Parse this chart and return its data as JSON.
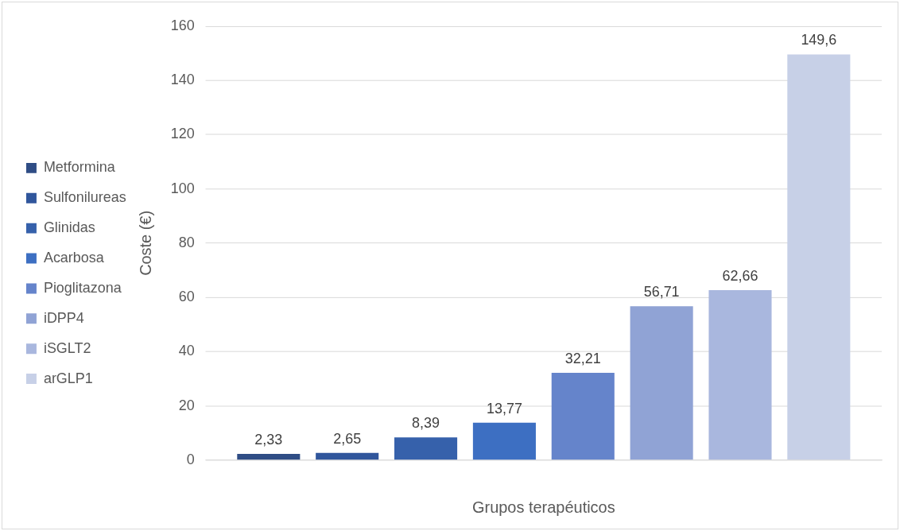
{
  "chart_data": {
    "type": "bar",
    "xlabel": "Grupos terapéuticos",
    "ylabel": "Coste (€)",
    "categories": [
      null
    ],
    "series": [
      {
        "name": "Metformina",
        "color": "#2f4d85",
        "values": [
          2.33
        ],
        "value_labels": [
          "2,33"
        ]
      },
      {
        "name": "Sulfonilureas",
        "color": "#30569c",
        "values": [
          2.65
        ],
        "value_labels": [
          "2,65"
        ]
      },
      {
        "name": "Glinidas",
        "color": "#3661ab",
        "values": [
          8.39
        ],
        "value_labels": [
          "8,39"
        ]
      },
      {
        "name": "Acarbosa",
        "color": "#3d6fc2",
        "values": [
          13.77
        ],
        "value_labels": [
          "13,77"
        ]
      },
      {
        "name": "Pioglitazona",
        "color": "#6584cb",
        "values": [
          32.21
        ],
        "value_labels": [
          "32,21"
        ]
      },
      {
        "name": "iDPP4",
        "color": "#90a3d5",
        "values": [
          56.71
        ],
        "value_labels": [
          "56,71"
        ]
      },
      {
        "name": "iSGLT2",
        "color": "#a9b7de",
        "values": [
          62.66
        ],
        "value_labels": [
          "62,66"
        ]
      },
      {
        "name": "arGLP1",
        "color": "#c7d0e7",
        "values": [
          149.6
        ],
        "value_labels": [
          "149,6"
        ]
      }
    ],
    "ylim": [
      0,
      160
    ],
    "yticks": [
      0,
      20,
      40,
      60,
      80,
      100,
      120,
      140,
      160
    ],
    "grid": "y",
    "legend": "left"
  }
}
